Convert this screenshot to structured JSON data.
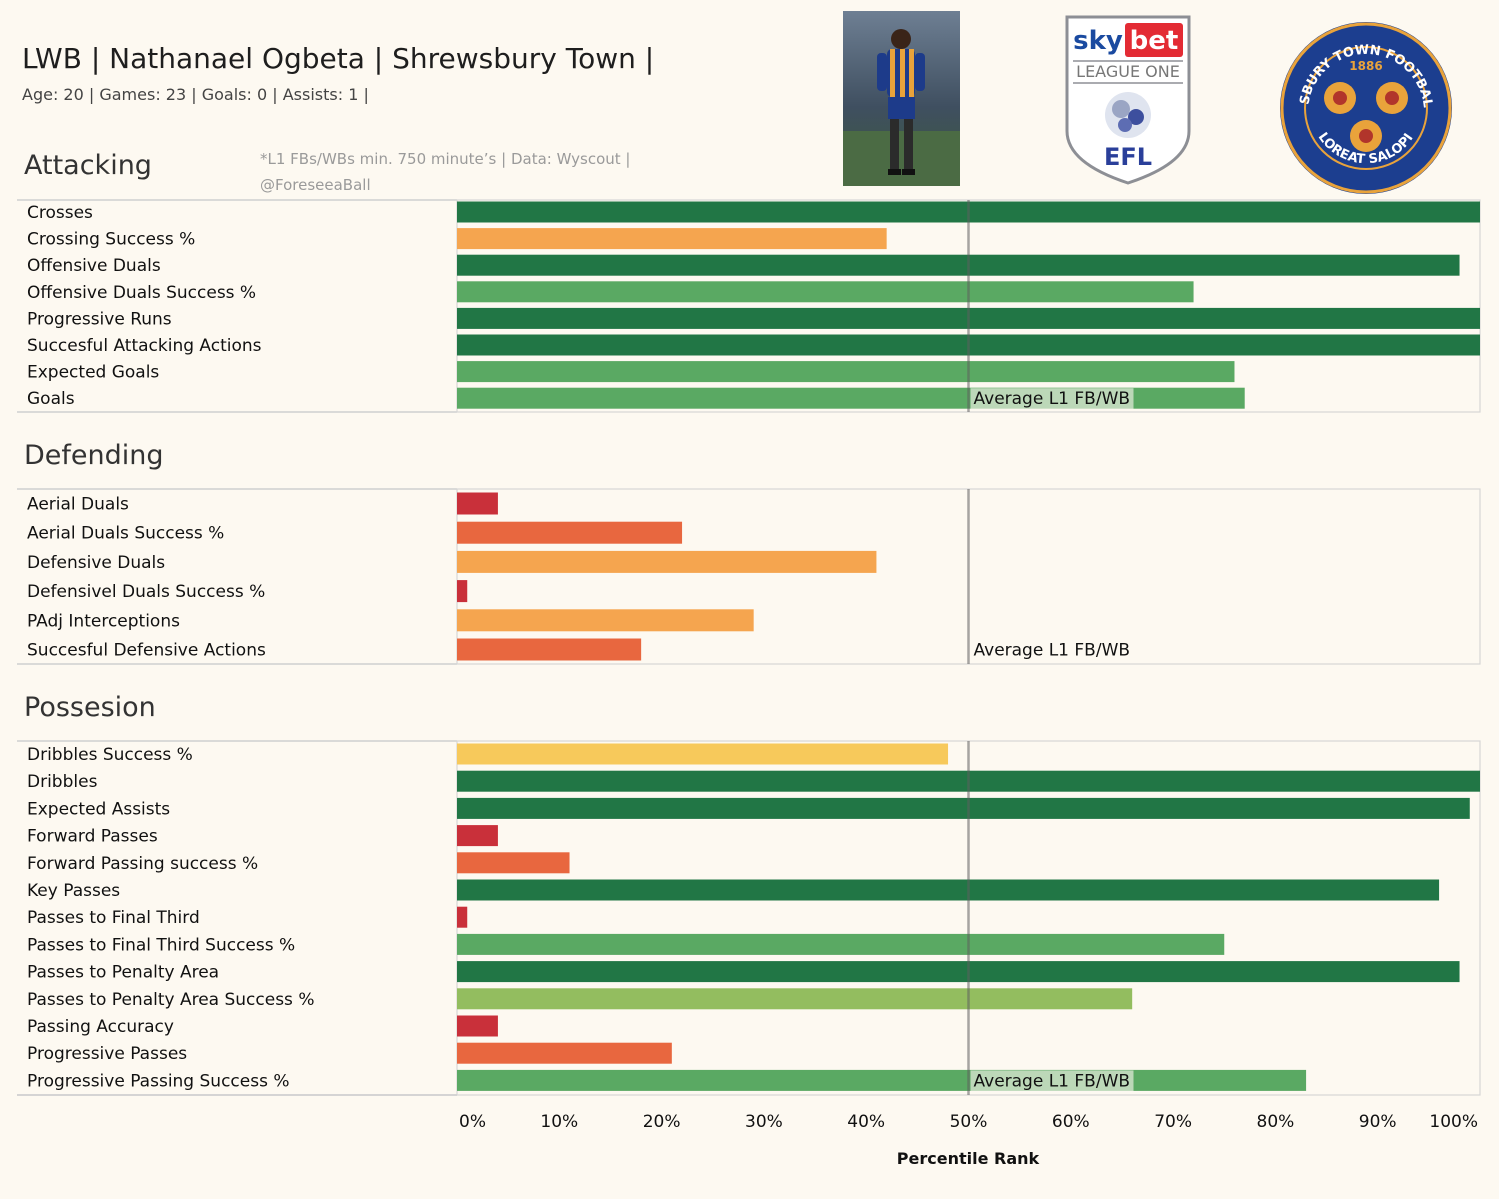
{
  "header": {
    "title": "LWB | Nathanael Ogbeta | Shrewsbury Town |",
    "subtitle": "Age: 20 | Games: 23 | Goals: 0 | Assists: 1 |",
    "note_line1": "*L1 FBs/WBs   min. 750 minute’s | Data: Wyscout |",
    "note_line2": "@ForeseeaBall"
  },
  "logos": {
    "league_sky": "sky",
    "league_bet": "bet",
    "league_name": "LEAGUE ONE",
    "league_efl": "EFL",
    "club_top": "SHREWSBURY TOWN FOOTBALL CLUB",
    "club_year": "1886",
    "club_bottom": "FLOREAT SALOPIA"
  },
  "chart_data": {
    "type": "bar",
    "orientation": "horizontal",
    "xlabel": "Percentile Rank",
    "xlim": [
      0,
      100
    ],
    "ticks": [
      "0%",
      "10%",
      "20%",
      "30%",
      "40%",
      "50%",
      "60%",
      "70%",
      "80%",
      "90%",
      "100%"
    ],
    "reference_line": {
      "value": 50,
      "label": "Average L1 FB/WB"
    },
    "sections": [
      {
        "name": "Attacking",
        "metrics": [
          {
            "label": "Crosses",
            "value": 100
          },
          {
            "label": "Crossing Success %",
            "value": 42
          },
          {
            "label": "Offensive Duals",
            "value": 98
          },
          {
            "label": "Offensive Duals Success %",
            "value": 72
          },
          {
            "label": "Progressive Runs",
            "value": 100
          },
          {
            "label": "Succesful Attacking Actions",
            "value": 100
          },
          {
            "label": "Expected Goals",
            "value": 76
          },
          {
            "label": "Goals",
            "value": 77
          }
        ]
      },
      {
        "name": "Defending",
        "metrics": [
          {
            "label": "Aerial Duals",
            "value": 4
          },
          {
            "label": "Aerial Duals Success %",
            "value": 22
          },
          {
            "label": "Defensive Duals",
            "value": 41
          },
          {
            "label": "Defensivel Duals Success %",
            "value": 1
          },
          {
            "label": "PAdj Interceptions",
            "value": 29
          },
          {
            "label": "Succesful Defensive Actions",
            "value": 18
          }
        ]
      },
      {
        "name": "Possesion",
        "metrics": [
          {
            "label": "Dribbles Success %",
            "value": 48
          },
          {
            "label": "Dribbles",
            "value": 100
          },
          {
            "label": "Expected Assists",
            "value": 99
          },
          {
            "label": "Forward Passes",
            "value": 4
          },
          {
            "label": "Forward Passing success %",
            "value": 11
          },
          {
            "label": "Key Passes",
            "value": 96
          },
          {
            "label": "Passes to Final Third",
            "value": 1
          },
          {
            "label": "Passes to Final Third Success %",
            "value": 75
          },
          {
            "label": "Passes to Penalty Area",
            "value": 98
          },
          {
            "label": "Passes to Penalty Area Success %",
            "value": 66
          },
          {
            "label": "Passing Accuracy",
            "value": 4
          },
          {
            "label": "Progressive Passes",
            "value": 21
          },
          {
            "label": "Progressive Passing Success %",
            "value": 83
          }
        ]
      }
    ],
    "color_scale": [
      "#c9303a",
      "#e8673f",
      "#f5a54f",
      "#f7c95b",
      "#93bd5f",
      "#5aa963",
      "#217645"
    ],
    "grid": false
  }
}
